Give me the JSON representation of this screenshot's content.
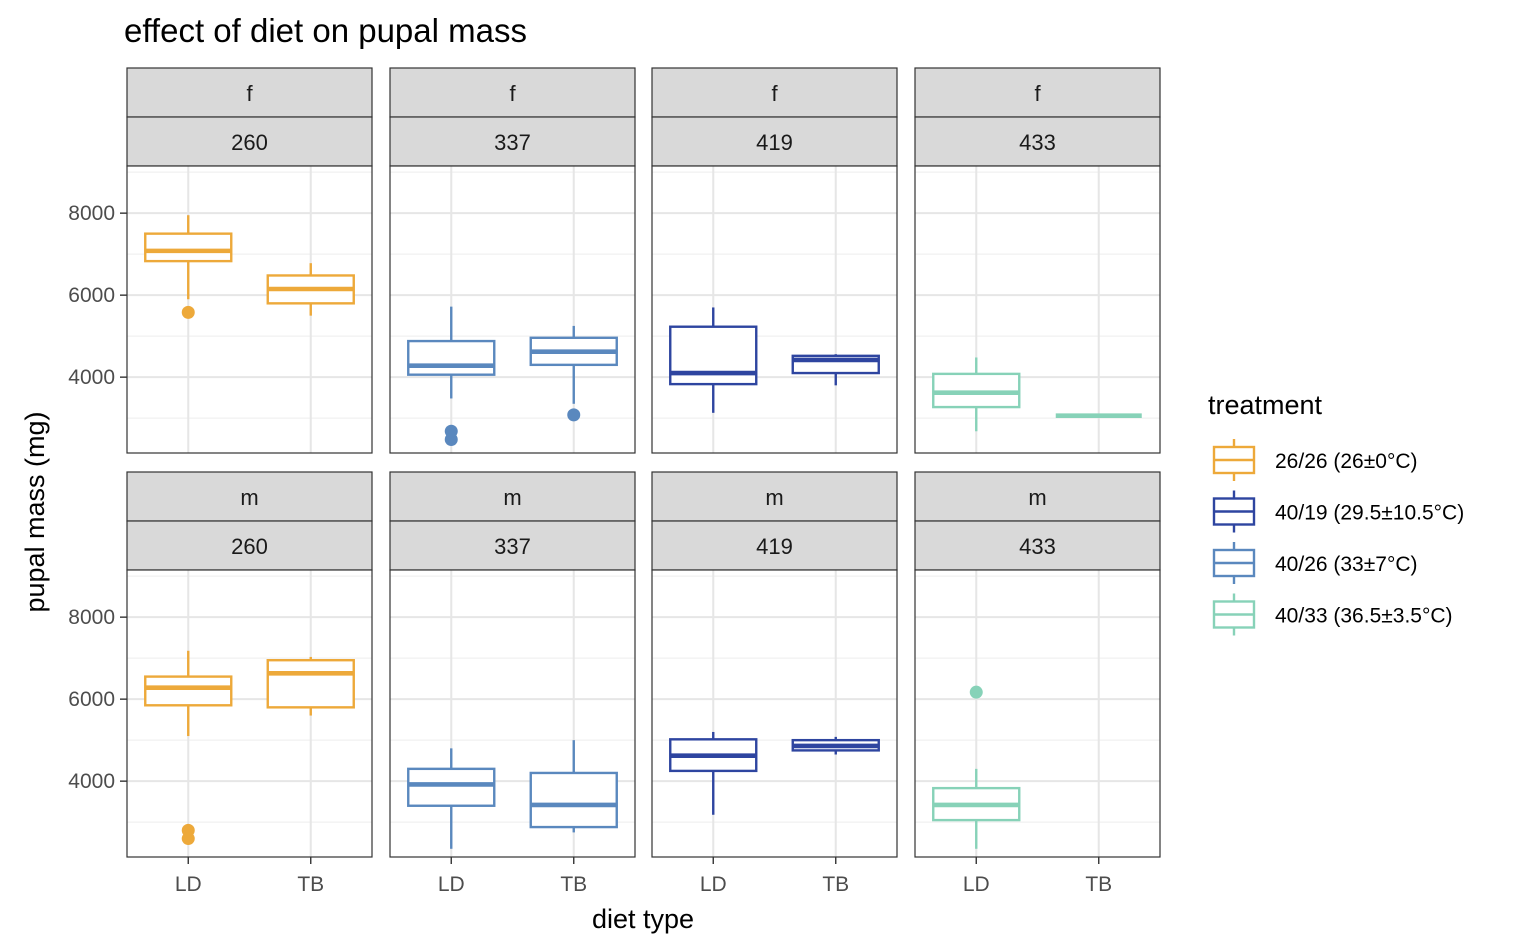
{
  "chart_data": {
    "type": "boxplot",
    "title": "effect of diet on pupal mass",
    "xlabel": "diet type",
    "ylabel": "pupal mass (mg)",
    "ylim": [
      2150,
      9150
    ],
    "y_ticks": [
      4000,
      6000,
      8000
    ],
    "x_categories": [
      "LD",
      "TB"
    ],
    "facet_rows": [
      "f",
      "m"
    ],
    "facet_cols": [
      "260",
      "337",
      "419",
      "433"
    ],
    "grid": true,
    "legend": {
      "title": "treatment",
      "position": "right",
      "entries": [
        {
          "label": "26/26 (26±0°C)",
          "color": "#EDA93A"
        },
        {
          "label": "40/19 (29.5±10.5°C)",
          "color": "#2E45A0"
        },
        {
          "label": "40/26 (33±7°C)",
          "color": "#5A88BE"
        },
        {
          "label": "40/33 (36.5±3.5°C)",
          "color": "#87D2B8"
        }
      ]
    },
    "panels": [
      {
        "row": "f",
        "col": "260",
        "color": "#EDA93A",
        "boxes": [
          {
            "x": "LD",
            "min": 5900,
            "q1": 6830,
            "median": 7080,
            "q3": 7500,
            "max": 7950,
            "outliers": [
              5580
            ]
          },
          {
            "x": "TB",
            "min": 5500,
            "q1": 5800,
            "median": 6150,
            "q3": 6480,
            "max": 6780,
            "outliers": []
          }
        ]
      },
      {
        "row": "f",
        "col": "337",
        "color": "#5A88BE",
        "boxes": [
          {
            "x": "LD",
            "min": 3480,
            "q1": 4060,
            "median": 4280,
            "q3": 4880,
            "max": 5720,
            "outliers": [
              2680,
              2480
            ]
          },
          {
            "x": "TB",
            "min": 3350,
            "q1": 4300,
            "median": 4620,
            "q3": 4960,
            "max": 5250,
            "outliers": [
              3080
            ]
          }
        ]
      },
      {
        "row": "f",
        "col": "419",
        "color": "#2E45A0",
        "boxes": [
          {
            "x": "LD",
            "min": 3130,
            "q1": 3830,
            "median": 4100,
            "q3": 5230,
            "max": 5700,
            "outliers": []
          },
          {
            "x": "TB",
            "min": 3800,
            "q1": 4100,
            "median": 4420,
            "q3": 4520,
            "max": 4560,
            "outliers": []
          }
        ]
      },
      {
        "row": "f",
        "col": "433",
        "color": "#87D2B8",
        "boxes": [
          {
            "x": "LD",
            "min": 2680,
            "q1": 3270,
            "median": 3620,
            "q3": 4080,
            "max": 4480,
            "outliers": []
          },
          {
            "x": "TB",
            "min": 3060,
            "q1": 3060,
            "median": 3060,
            "q3": 3060,
            "max": 3060,
            "outliers": []
          }
        ]
      },
      {
        "row": "m",
        "col": "260",
        "color": "#EDA93A",
        "boxes": [
          {
            "x": "LD",
            "min": 5100,
            "q1": 5850,
            "median": 6280,
            "q3": 6550,
            "max": 7180,
            "outliers": [
              2800,
              2600
            ]
          },
          {
            "x": "TB",
            "min": 5600,
            "q1": 5800,
            "median": 6630,
            "q3": 6950,
            "max": 7030,
            "outliers": []
          }
        ]
      },
      {
        "row": "m",
        "col": "337",
        "color": "#5A88BE",
        "boxes": [
          {
            "x": "LD",
            "min": 2350,
            "q1": 3400,
            "median": 3920,
            "q3": 4300,
            "max": 4800,
            "outliers": []
          },
          {
            "x": "TB",
            "min": 2750,
            "q1": 2880,
            "median": 3420,
            "q3": 4200,
            "max": 5000,
            "outliers": []
          }
        ]
      },
      {
        "row": "m",
        "col": "419",
        "color": "#2E45A0",
        "boxes": [
          {
            "x": "LD",
            "min": 3180,
            "q1": 4250,
            "median": 4620,
            "q3": 5020,
            "max": 5200,
            "outliers": []
          },
          {
            "x": "TB",
            "min": 4650,
            "q1": 4750,
            "median": 4860,
            "q3": 5000,
            "max": 5080,
            "outliers": []
          }
        ]
      },
      {
        "row": "m",
        "col": "433",
        "color": "#87D2B8",
        "boxes": [
          {
            "x": "LD",
            "min": 2350,
            "q1": 3050,
            "median": 3420,
            "q3": 3830,
            "max": 4300,
            "outliers": [
              6170
            ]
          }
        ]
      }
    ]
  }
}
